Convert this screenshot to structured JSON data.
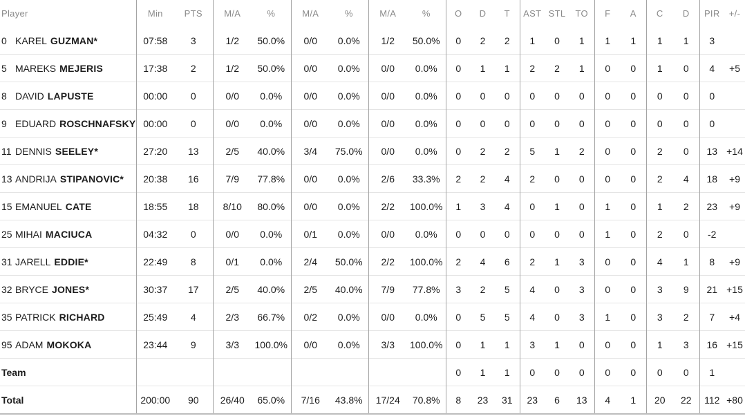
{
  "table": {
    "header": {
      "player": "Player",
      "min": "Min",
      "pts": "PTS",
      "fg2_ma": "M/A",
      "fg2_pct": "%",
      "fg3_ma": "M/A",
      "fg3_pct": "%",
      "ft_ma": "M/A",
      "ft_pct": "%",
      "reb_o": "O",
      "reb_d": "D",
      "reb_t": "T",
      "ast": "AST",
      "stl": "STL",
      "to": "TO",
      "f": "F",
      "a": "A",
      "c": "C",
      "d": "D",
      "pir": "PIR",
      "plusminus": "+/-"
    },
    "rows": [
      {
        "number": "0",
        "first": "KAREL",
        "last": "GUZMAN*",
        "cells": [
          "07:58",
          "3",
          "1/2",
          "50.0%",
          "0/0",
          "0.0%",
          "1/2",
          "50.0%",
          "0",
          "2",
          "2",
          "1",
          "0",
          "1",
          "1",
          "1",
          "1",
          "1",
          "3",
          ""
        ]
      },
      {
        "number": "5",
        "first": "MAREKS",
        "last": "MEJERIS",
        "cells": [
          "17:38",
          "2",
          "1/2",
          "50.0%",
          "0/0",
          "0.0%",
          "0/0",
          "0.0%",
          "0",
          "1",
          "1",
          "2",
          "2",
          "1",
          "0",
          "0",
          "1",
          "0",
          "4",
          "+5"
        ]
      },
      {
        "number": "8",
        "first": "DAVID",
        "last": "LAPUSTE",
        "cells": [
          "00:00",
          "0",
          "0/0",
          "0.0%",
          "0/0",
          "0.0%",
          "0/0",
          "0.0%",
          "0",
          "0",
          "0",
          "0",
          "0",
          "0",
          "0",
          "0",
          "0",
          "0",
          "0",
          ""
        ]
      },
      {
        "number": "9",
        "first": "EDUARD",
        "last": "ROSCHNAFSKY",
        "cells": [
          "00:00",
          "0",
          "0/0",
          "0.0%",
          "0/0",
          "0.0%",
          "0/0",
          "0.0%",
          "0",
          "0",
          "0",
          "0",
          "0",
          "0",
          "0",
          "0",
          "0",
          "0",
          "0",
          ""
        ]
      },
      {
        "number": "11",
        "first": "DENNIS",
        "last": "SEELEY*",
        "cells": [
          "27:20",
          "13",
          "2/5",
          "40.0%",
          "3/4",
          "75.0%",
          "0/0",
          "0.0%",
          "0",
          "2",
          "2",
          "5",
          "1",
          "2",
          "0",
          "0",
          "2",
          "0",
          "13",
          "+14"
        ]
      },
      {
        "number": "13",
        "first": "ANDRIJA",
        "last": "STIPANOVIC*",
        "cells": [
          "20:38",
          "16",
          "7/9",
          "77.8%",
          "0/0",
          "0.0%",
          "2/6",
          "33.3%",
          "2",
          "2",
          "4",
          "2",
          "0",
          "0",
          "0",
          "0",
          "2",
          "4",
          "18",
          "+9"
        ]
      },
      {
        "number": "15",
        "first": "EMANUEL",
        "last": "CATE",
        "cells": [
          "18:55",
          "18",
          "8/10",
          "80.0%",
          "0/0",
          "0.0%",
          "2/2",
          "100.0%",
          "1",
          "3",
          "4",
          "0",
          "1",
          "0",
          "1",
          "0",
          "1",
          "2",
          "23",
          "+9"
        ]
      },
      {
        "number": "25",
        "first": "MIHAI",
        "last": "MACIUCA",
        "cells": [
          "04:32",
          "0",
          "0/0",
          "0.0%",
          "0/1",
          "0.0%",
          "0/0",
          "0.0%",
          "0",
          "0",
          "0",
          "0",
          "0",
          "0",
          "1",
          "0",
          "2",
          "0",
          "-2",
          ""
        ]
      },
      {
        "number": "31",
        "first": "JARELL",
        "last": "EDDIE*",
        "cells": [
          "22:49",
          "8",
          "0/1",
          "0.0%",
          "2/4",
          "50.0%",
          "2/2",
          "100.0%",
          "2",
          "4",
          "6",
          "2",
          "1",
          "3",
          "0",
          "0",
          "4",
          "1",
          "8",
          "+9"
        ]
      },
      {
        "number": "32",
        "first": "BRYCE",
        "last": "JONES*",
        "cells": [
          "30:37",
          "17",
          "2/5",
          "40.0%",
          "2/5",
          "40.0%",
          "7/9",
          "77.8%",
          "3",
          "2",
          "5",
          "4",
          "0",
          "3",
          "0",
          "0",
          "3",
          "9",
          "21",
          "+15"
        ]
      },
      {
        "number": "35",
        "first": "PATRICK",
        "last": "RICHARD",
        "cells": [
          "25:49",
          "4",
          "2/3",
          "66.7%",
          "0/2",
          "0.0%",
          "0/0",
          "0.0%",
          "0",
          "5",
          "5",
          "4",
          "0",
          "3",
          "1",
          "0",
          "3",
          "2",
          "7",
          "+4"
        ]
      },
      {
        "number": "95",
        "first": "ADAM",
        "last": "MOKOKA",
        "cells": [
          "23:44",
          "9",
          "3/3",
          "100.0%",
          "0/0",
          "0.0%",
          "3/3",
          "100.0%",
          "0",
          "1",
          "1",
          "3",
          "1",
          "0",
          "0",
          "0",
          "1",
          "3",
          "16",
          "+15"
        ]
      },
      {
        "label": "Team",
        "cells": [
          "",
          "",
          "",
          "",
          "",
          "",
          "",
          "",
          "0",
          "1",
          "1",
          "0",
          "0",
          "0",
          "0",
          "0",
          "0",
          "0",
          "1",
          ""
        ]
      },
      {
        "label": "Total",
        "cells": [
          "200:00",
          "90",
          "26/40",
          "65.0%",
          "7/16",
          "43.8%",
          "17/24",
          "70.8%",
          "8",
          "23",
          "31",
          "23",
          "6",
          "13",
          "4",
          "1",
          "20",
          "22",
          "112",
          "+80"
        ]
      }
    ]
  },
  "colors": {
    "text": "#1c1c1c",
    "header_text": "#8a8a8a",
    "vertical_rule": "#a4a4a4",
    "row_separator": "#e4e4e4",
    "bottom_rule": "#bdbdbd",
    "background": "#ffffff"
  }
}
